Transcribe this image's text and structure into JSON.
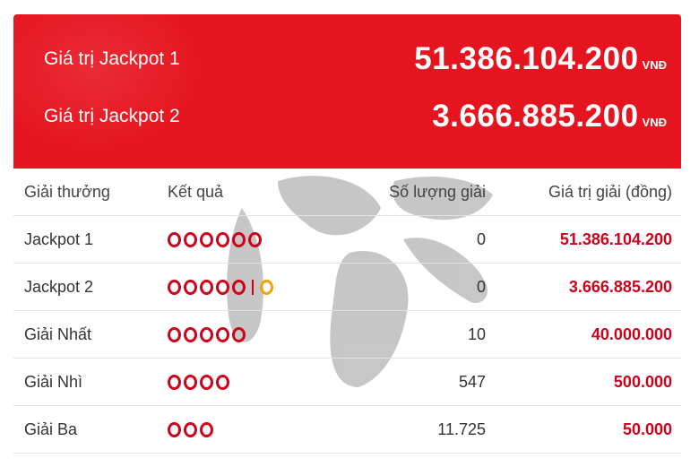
{
  "jackpots": [
    {
      "label": "Giá trị Jackpot 1",
      "amount": "51.386.104.200",
      "unit": "VNĐ"
    },
    {
      "label": "Giá trị Jackpot 2",
      "amount": "3.666.885.200",
      "unit": "VNĐ"
    }
  ],
  "table": {
    "headers": [
      "Giải thưởng",
      "Kết quả",
      "Số lượng giải",
      "Giá trị giải (đồng)"
    ],
    "rows": [
      {
        "prize": "Jackpot 1",
        "count": "0",
        "value": "51.386.104.200"
      },
      {
        "prize": "Jackpot 2",
        "count": "0",
        "value": "3.666.885.200"
      },
      {
        "prize": "Giải Nhất",
        "count": "10",
        "value": "40.000.000"
      },
      {
        "prize": "Giải Nhì",
        "count": "547",
        "value": "500.000"
      },
      {
        "prize": "Giải Ba",
        "count": "11.725",
        "value": "50.000"
      }
    ]
  },
  "colors": {
    "banner": "#e6141e",
    "ball_red": "#d0021b",
    "ball_gold": "#f0a30a"
  },
  "icons": [
    "ball-icon",
    "watermark-logo"
  ]
}
